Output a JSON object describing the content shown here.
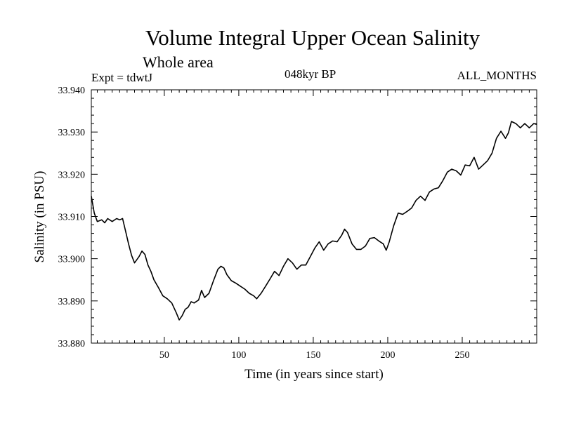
{
  "header": {
    "title": "Volume Integral Upper Ocean Salinity",
    "subtitle": "Whole area",
    "experiment": "Expt = tdwtJ",
    "period": "048kyr BP",
    "months": "ALL_MONTHS"
  },
  "chart_data": {
    "type": "line",
    "title": "Volume Integral Upper Ocean Salinity",
    "xlabel": "Time (in years since start)",
    "ylabel": "Salinity (in PSU)",
    "xlim": [
      1,
      300
    ],
    "ylim": [
      33.88,
      33.94
    ],
    "xticks": [
      50,
      100,
      150,
      200,
      250
    ],
    "xtick_labels": [
      "50",
      "100",
      "150",
      "200",
      "250"
    ],
    "yticks": [
      33.88,
      33.89,
      33.9,
      33.91,
      33.92,
      33.93,
      33.94
    ],
    "ytick_labels": [
      "33.880",
      "33.890",
      "33.900",
      "33.910",
      "33.920",
      "33.930",
      "33.940"
    ],
    "grid": false,
    "series": [
      {
        "name": "Salinity",
        "x": [
          1,
          3,
          5,
          8,
          10,
          12,
          15,
          18,
          20,
          22,
          24,
          26,
          28,
          30,
          33,
          35,
          37,
          39,
          41,
          43,
          46,
          49,
          52,
          55,
          58,
          60,
          62,
          64,
          66,
          68,
          70,
          73,
          75,
          77,
          80,
          83,
          86,
          88,
          90,
          92,
          95,
          98,
          101,
          104,
          107,
          110,
          112,
          115,
          118,
          121,
          124,
          127,
          130,
          133,
          136,
          139,
          142,
          145,
          148,
          151,
          154,
          157,
          160,
          163,
          166,
          169,
          171,
          173,
          176,
          179,
          182,
          185,
          188,
          191,
          194,
          197,
          199,
          201,
          204,
          207,
          210,
          213,
          216,
          219,
          222,
          225,
          228,
          231,
          234,
          237,
          240,
          243,
          246,
          249,
          252,
          255,
          258,
          261,
          264,
          267,
          270,
          273,
          276,
          279,
          281,
          283,
          286,
          289,
          292,
          295,
          298,
          300
        ],
        "y": [
          33.9148,
          33.9108,
          33.9088,
          33.9092,
          33.9085,
          33.9095,
          33.9088,
          33.9095,
          33.9092,
          33.9095,
          33.9065,
          33.9035,
          33.9008,
          33.899,
          33.9005,
          33.9018,
          33.901,
          33.8985,
          33.897,
          33.895,
          33.8932,
          33.8912,
          33.8905,
          33.8895,
          33.8872,
          33.8855,
          33.8865,
          33.888,
          33.8885,
          33.8898,
          33.8895,
          33.8902,
          33.8925,
          33.8908,
          33.8918,
          33.8948,
          33.8975,
          33.8982,
          33.8978,
          33.8962,
          33.8948,
          33.8942,
          33.8935,
          33.8928,
          33.8918,
          33.8912,
          33.8905,
          33.8918,
          33.8935,
          33.8952,
          33.897,
          33.896,
          33.8982,
          33.9,
          33.899,
          33.8975,
          33.8985,
          33.8985,
          33.9005,
          33.9025,
          33.904,
          33.902,
          33.9035,
          33.9042,
          33.904,
          33.9055,
          33.907,
          33.9062,
          33.9035,
          33.9022,
          33.9022,
          33.903,
          33.9048,
          33.905,
          33.9042,
          33.9035,
          33.902,
          33.904,
          33.9078,
          33.9108,
          33.9105,
          33.9112,
          33.912,
          33.9138,
          33.9148,
          33.9138,
          33.9158,
          33.9165,
          33.9168,
          33.9185,
          33.9205,
          33.9212,
          33.9208,
          33.9198,
          33.9222,
          33.922,
          33.924,
          33.9212,
          33.9222,
          33.9232,
          33.925,
          33.9285,
          33.9302,
          33.9285,
          33.9298,
          33.9325,
          33.932,
          33.931,
          33.932,
          33.931,
          33.932,
          33.9318
        ]
      }
    ]
  }
}
